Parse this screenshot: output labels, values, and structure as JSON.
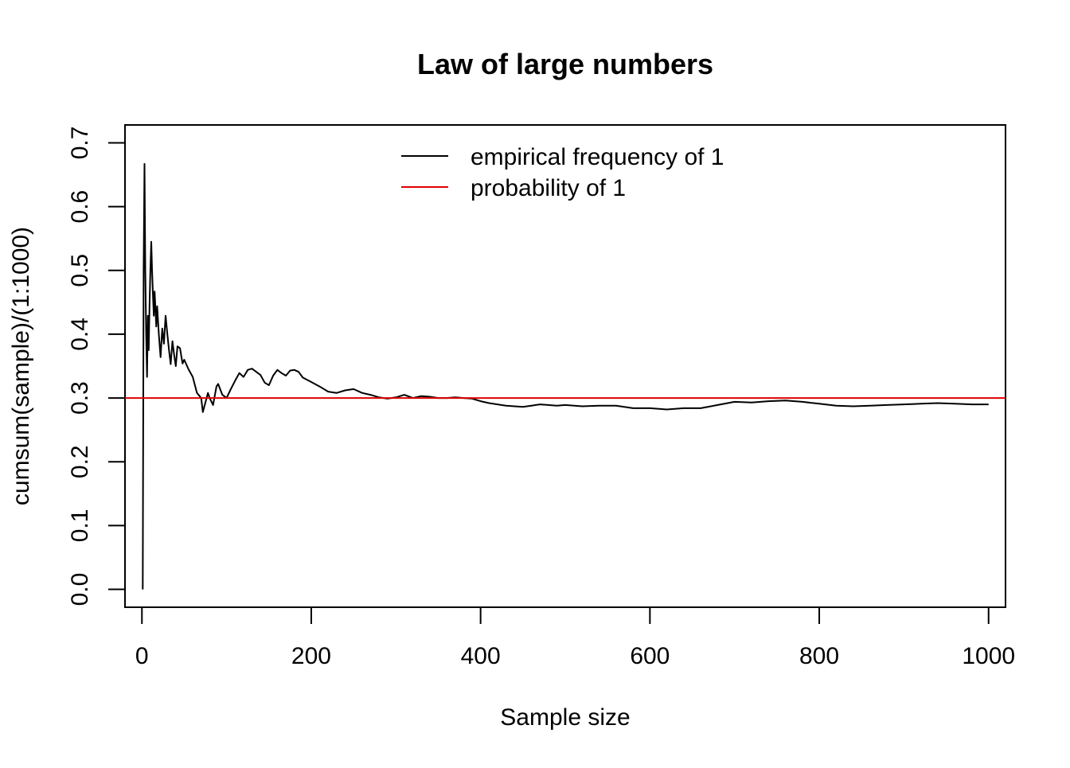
{
  "chart_data": {
    "type": "line",
    "title": "Law of large numbers",
    "xlabel": "Sample size",
    "ylabel": "cumsum(sample)/(1:1000)",
    "xlim": [
      -20,
      1020
    ],
    "ylim": [
      -0.028,
      0.728
    ],
    "x_ticks": [
      0,
      200,
      400,
      600,
      800,
      1000
    ],
    "y_ticks": [
      0.0,
      0.1,
      0.2,
      0.3,
      0.4,
      0.5,
      0.6,
      0.7
    ],
    "grid": false,
    "legend": {
      "placement": "top",
      "entries": [
        {
          "label": "empirical frequency of 1",
          "color": "#000000"
        },
        {
          "label": "probability of 1",
          "color": "#e00000"
        }
      ]
    },
    "series": [
      {
        "name": "empirical frequency of 1",
        "color": "#000000",
        "x": [
          1,
          2,
          3,
          4,
          5,
          6,
          7,
          8,
          9,
          10,
          11,
          12,
          13,
          14,
          15,
          16,
          17,
          18,
          19,
          20,
          22,
          24,
          26,
          28,
          30,
          32,
          34,
          36,
          38,
          40,
          42,
          45,
          48,
          50,
          55,
          60,
          65,
          70,
          72,
          75,
          78,
          80,
          84,
          88,
          90,
          95,
          100,
          105,
          110,
          115,
          120,
          125,
          130,
          135,
          140,
          145,
          150,
          155,
          160,
          165,
          170,
          175,
          180,
          185,
          190,
          200,
          210,
          220,
          230,
          240,
          250,
          260,
          270,
          280,
          290,
          300,
          310,
          320,
          330,
          340,
          350,
          360,
          370,
          380,
          390,
          400,
          410,
          420,
          430,
          440,
          450,
          460,
          470,
          480,
          490,
          500,
          520,
          540,
          560,
          580,
          600,
          620,
          640,
          660,
          680,
          700,
          720,
          740,
          760,
          780,
          800,
          820,
          840,
          860,
          880,
          900,
          920,
          940,
          960,
          980,
          1000
        ],
        "y": [
          0.0,
          0.5,
          0.667,
          0.5,
          0.4,
          0.333,
          0.429,
          0.375,
          0.444,
          0.5,
          0.545,
          0.5,
          0.462,
          0.429,
          0.467,
          0.438,
          0.412,
          0.444,
          0.421,
          0.4,
          0.364,
          0.409,
          0.385,
          0.429,
          0.4,
          0.375,
          0.353,
          0.389,
          0.368,
          0.35,
          0.381,
          0.378,
          0.354,
          0.36,
          0.345,
          0.333,
          0.308,
          0.3,
          0.278,
          0.293,
          0.308,
          0.3,
          0.289,
          0.318,
          0.322,
          0.305,
          0.3,
          0.314,
          0.327,
          0.339,
          0.333,
          0.344,
          0.346,
          0.341,
          0.336,
          0.324,
          0.32,
          0.335,
          0.344,
          0.339,
          0.335,
          0.343,
          0.344,
          0.341,
          0.332,
          0.325,
          0.318,
          0.31,
          0.308,
          0.312,
          0.314,
          0.308,
          0.305,
          0.301,
          0.299,
          0.301,
          0.305,
          0.3,
          0.303,
          0.302,
          0.3,
          0.3,
          0.301,
          0.3,
          0.299,
          0.295,
          0.292,
          0.29,
          0.288,
          0.287,
          0.286,
          0.288,
          0.29,
          0.289,
          0.288,
          0.289,
          0.287,
          0.288,
          0.288,
          0.284,
          0.284,
          0.282,
          0.284,
          0.284,
          0.289,
          0.294,
          0.293,
          0.295,
          0.296,
          0.294,
          0.291,
          0.288,
          0.287,
          0.288,
          0.289,
          0.29,
          0.291,
          0.292,
          0.291,
          0.29,
          0.29
        ]
      },
      {
        "name": "probability of 1",
        "color": "#e00000",
        "abline_h": 0.3
      }
    ]
  }
}
